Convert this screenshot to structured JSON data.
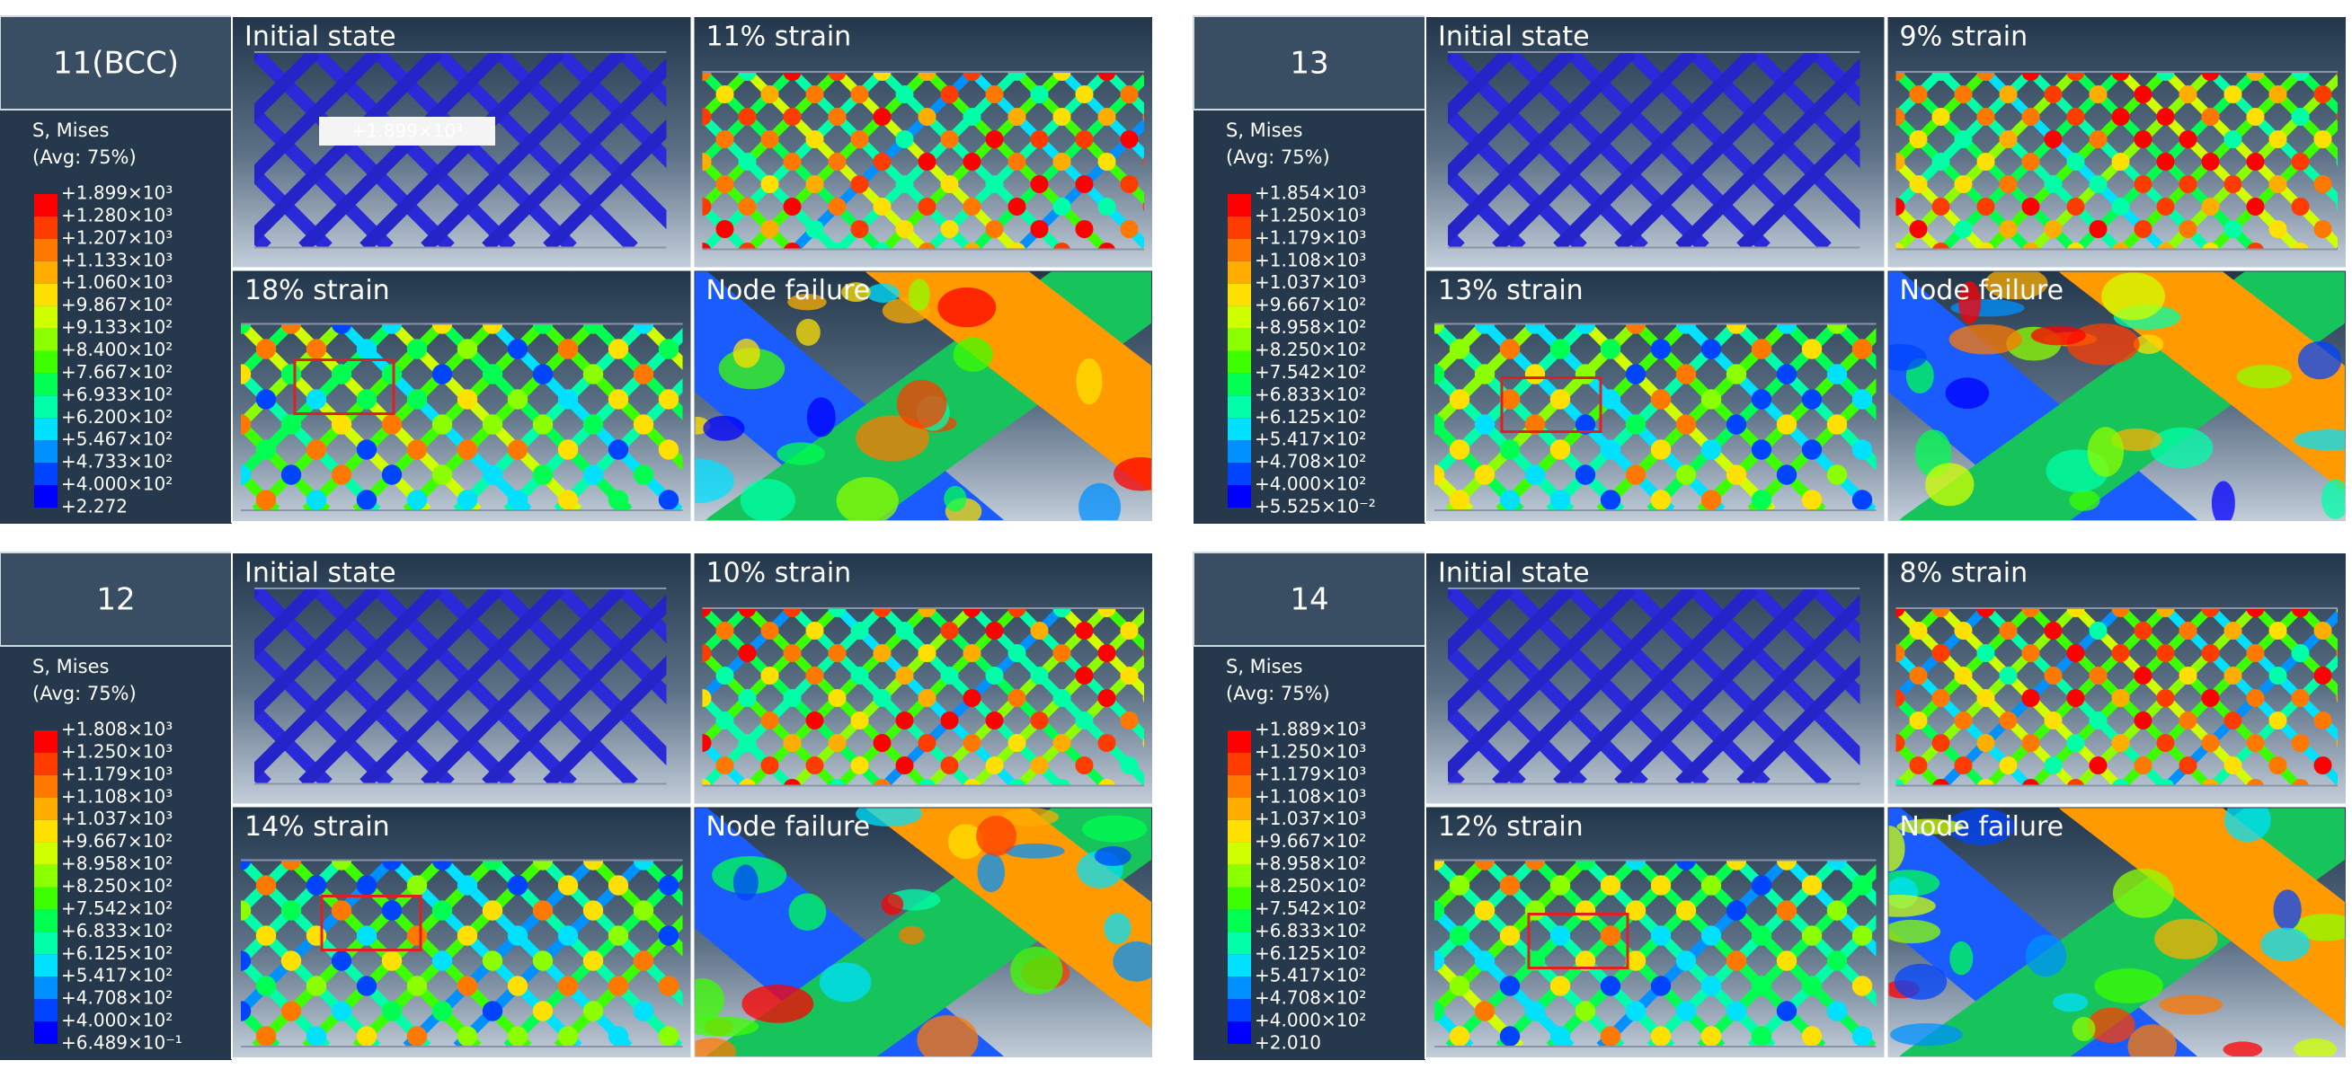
{
  "panels": [
    {
      "id": "11(BCC)",
      "legend_title": "S, Mises",
      "legend_subtitle": "(Avg: 75%)",
      "legend": [
        "+1.899×10³",
        "+1.280×10³",
        "+1.207×10³",
        "+1.133×10³",
        "+1.060×10³",
        "+9.867×10²",
        "+9.133×10²",
        "+8.400×10²",
        "+7.667×10²",
        "+6.933×10²",
        "+6.200×10²",
        "+5.467×10²",
        "+4.733×10²",
        "+4.000×10²",
        "+2.272"
      ],
      "captions": [
        "Initial state",
        "11% strain",
        "18% strain",
        "Node failure"
      ],
      "annotation": "+1.899×10³"
    },
    {
      "id": "13",
      "legend_title": "S, Mises",
      "legend_subtitle": "(Avg: 75%)",
      "legend": [
        "+1.854×10³",
        "+1.250×10³",
        "+1.179×10³",
        "+1.108×10³",
        "+1.037×10³",
        "+9.667×10²",
        "+8.958×10²",
        "+8.250×10²",
        "+7.542×10²",
        "+6.833×10²",
        "+6.125×10²",
        "+5.417×10²",
        "+4.708×10²",
        "+4.000×10²",
        "+5.525×10⁻²"
      ],
      "captions": [
        "Initial state",
        "9% strain",
        "13% strain",
        "Node failure"
      ]
    },
    {
      "id": "12",
      "legend_title": "S, Mises",
      "legend_subtitle": "(Avg: 75%)",
      "legend": [
        "+1.808×10³",
        "+1.250×10³",
        "+1.179×10³",
        "+1.108×10³",
        "+1.037×10³",
        "+9.667×10²",
        "+8.958×10²",
        "+8.250×10²",
        "+7.542×10²",
        "+6.833×10²",
        "+6.125×10²",
        "+5.417×10²",
        "+4.708×10²",
        "+4.000×10²",
        "+6.489×10⁻¹"
      ],
      "captions": [
        "Initial state",
        "10% strain",
        "14% strain",
        "Node failure"
      ]
    },
    {
      "id": "14",
      "legend_title": "S, Mises",
      "legend_subtitle": "(Avg: 75%)",
      "legend": [
        "+1.889×10³",
        "+1.250×10³",
        "+1.179×10³",
        "+1.108×10³",
        "+1.037×10³",
        "+9.667×10²",
        "+8.958×10²",
        "+8.250×10²",
        "+7.542×10²",
        "+6.833×10²",
        "+6.125×10²",
        "+5.417×10²",
        "+4.708×10²",
        "+4.000×10²",
        "+2.010"
      ],
      "captions": [
        "Initial state",
        "8% strain",
        "12% strain",
        "Node failure"
      ]
    }
  ]
}
